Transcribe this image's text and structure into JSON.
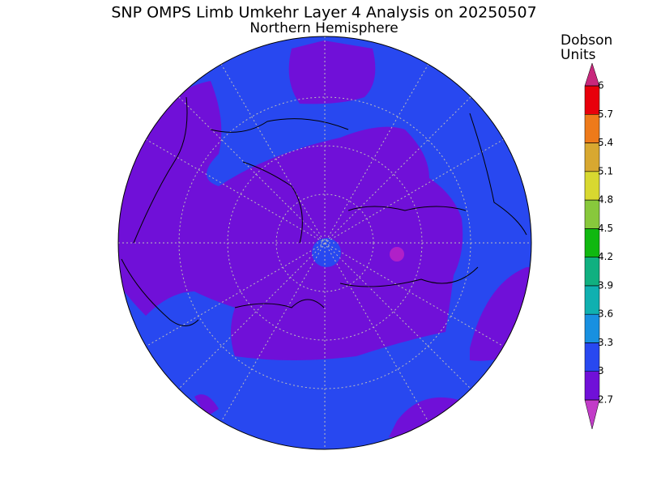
{
  "title": "SNP OMPS Limb Umkehr Layer 4 Analysis on 20250507",
  "subtitle": "Northern Hemisphere",
  "colorbar": {
    "label": [
      "Dobson",
      "Units"
    ],
    "ticks": [
      2.7,
      3,
      3.3,
      3.6,
      3.9,
      4.2,
      4.5,
      4.8,
      5.1,
      5.4,
      5.7,
      6
    ],
    "colors": [
      "#c23cc8",
      "#7010d8",
      "#2848f0",
      "#1890e0",
      "#10b0b0",
      "#10b080",
      "#10b810",
      "#88c83c",
      "#d8d830",
      "#d8a830",
      "#ee7a1a",
      "#e8000b",
      "#c8287c"
    ]
  }
}
